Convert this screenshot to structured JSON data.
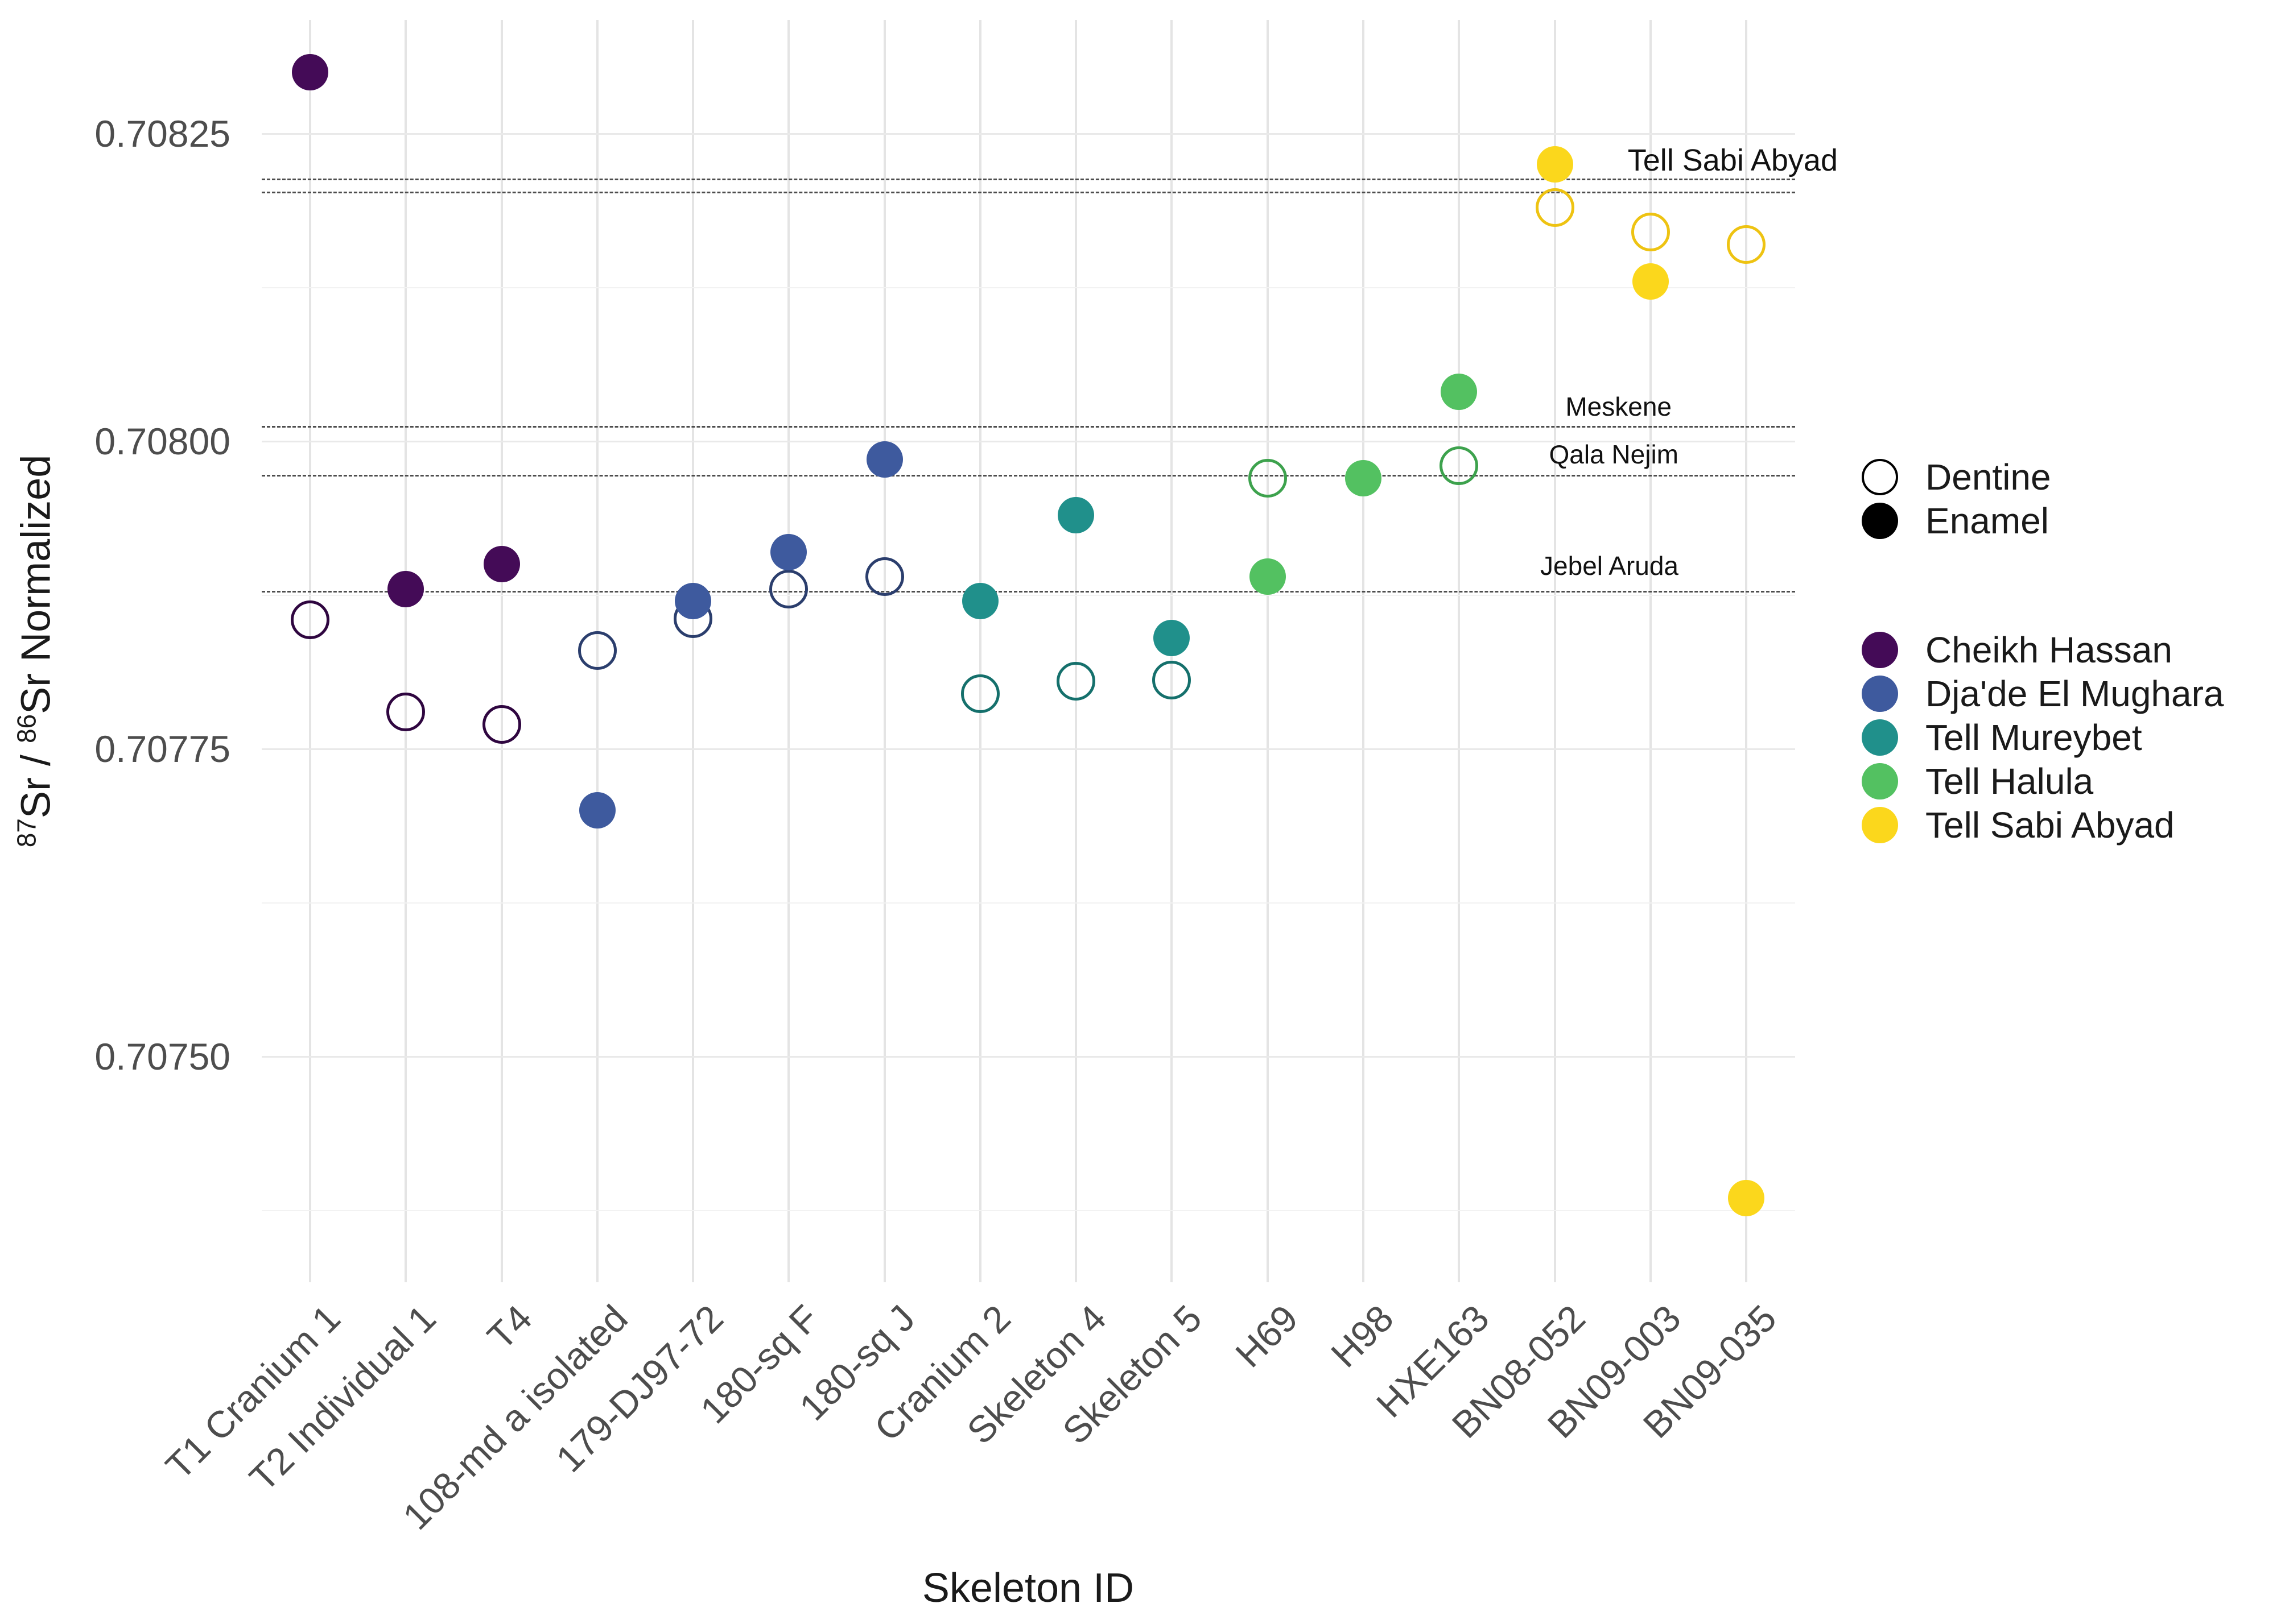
{
  "chart_data": {
    "type": "scatter",
    "title": "",
    "xlabel": "Skeleton ID",
    "ylabel": "87Sr / 86Sr Normalized",
    "ylabel_parts": {
      "sup1": "87",
      "mid1": "Sr / ",
      "sup2": "86",
      "mid2": "Sr Normalized"
    },
    "x_categories": [
      "T1 Cranium 1",
      "T2 Individual 1",
      "T4",
      "108-md a isolated",
      "179-DJ97-72",
      "180-sq F",
      "180-sq J",
      "Cranium 2",
      "Skeleton 4",
      "Skeleton 5",
      "H69",
      "H98",
      "HXE163",
      "BN08-052",
      "BN09-003",
      "BN09-035"
    ],
    "y_ticks": [
      {
        "label": "0.70825",
        "value": 0.70825
      },
      {
        "label": "0.70800",
        "value": 0.708
      },
      {
        "label": "0.70775",
        "value": 0.70775
      },
      {
        "label": "0.70750",
        "value": 0.7075
      }
    ],
    "y_minor_gridlines": [
      0.708125,
      0.707875,
      0.707625,
      0.707375
    ],
    "ylim": [
      0.707317,
      0.708342
    ],
    "grid": "on",
    "legend_position": "right",
    "series_by_site": [
      {
        "site": "Cheikh Hassan",
        "color": "#440b57",
        "stroke": "#2f0640",
        "points": [
          {
            "skeleton": "T1 Cranium 1",
            "x_index": 0,
            "enamel": 0.7083,
            "dentine": 0.707855
          },
          {
            "skeleton": "T2 Individual 1",
            "x_index": 1,
            "enamel": 0.70788,
            "dentine": 0.70778
          },
          {
            "skeleton": "T4",
            "x_index": 2,
            "enamel": 0.7079,
            "dentine": 0.70777
          }
        ]
      },
      {
        "site": "Dja'de El Mughara",
        "color": "#3e5a9e",
        "stroke": "#2b3e6d",
        "points": [
          {
            "skeleton": "108-md a isolated",
            "x_index": 3,
            "enamel": 0.7077,
            "dentine": 0.70783
          },
          {
            "skeleton": "179-DJ97-72",
            "x_index": 4,
            "enamel": 0.70787,
            "dentine": 0.707856
          },
          {
            "skeleton": "180-sq F",
            "x_index": 5,
            "enamel": 0.70791,
            "dentine": 0.70788
          },
          {
            "skeleton": "180-sq J",
            "x_index": 6,
            "enamel": 0.707985,
            "dentine": 0.70789
          }
        ]
      },
      {
        "site": "Tell Mureybet",
        "color": "#20908b",
        "stroke": "#15706c",
        "points": [
          {
            "skeleton": "Cranium 2",
            "x_index": 7,
            "enamel": 0.70787,
            "dentine": 0.707795
          },
          {
            "skeleton": "Skeleton 4",
            "x_index": 8,
            "enamel": 0.70794,
            "dentine": 0.707805
          },
          {
            "skeleton": "Skeleton 5",
            "x_index": 9,
            "enamel": 0.70784,
            "dentine": 0.707806
          }
        ]
      },
      {
        "site": "Tell Halula",
        "color": "#53c161",
        "stroke": "#3da24d",
        "points": [
          {
            "skeleton": "H69",
            "x_index": 10,
            "enamel": 0.70789,
            "dentine": 0.70797
          },
          {
            "skeleton": "H98",
            "x_index": 11,
            "enamel": 0.70797,
            "dentine": null
          },
          {
            "skeleton": "HXE163",
            "x_index": 12,
            "enamel": 0.70804,
            "dentine": 0.70798
          }
        ]
      },
      {
        "site": "Tell Sabi Abyad",
        "color": "#fbd71c",
        "stroke": "#eec312",
        "points": [
          {
            "skeleton": "BN08-052",
            "x_index": 13,
            "enamel": 0.708225,
            "dentine": 0.70819
          },
          {
            "skeleton": "BN09-003",
            "x_index": 14,
            "enamel": 0.70813,
            "dentine": 0.70817
          },
          {
            "skeleton": "BN09-035",
            "x_index": 15,
            "enamel": 0.707385,
            "dentine": 0.70816
          }
        ]
      }
    ],
    "reference_lines": [
      {
        "label": "Tell Sabi Abyad",
        "values": [
          0.708213,
          0.708202
        ],
        "label_x": 3230,
        "label_y": 252,
        "size": "large"
      },
      {
        "label": "Meskene",
        "values": [
          0.708012
        ],
        "label_x": 2938,
        "label_y": 688,
        "size": "small"
      },
      {
        "label": "Qala Nejim",
        "values": [
          0.707972
        ],
        "label_x": 2950,
        "label_y": 772,
        "size": "small"
      },
      {
        "label": "Jebel Aruda",
        "values": [
          0.707878
        ],
        "label_x": 2950,
        "label_y": 968,
        "size": "small"
      }
    ],
    "legend": {
      "shape_items": [
        {
          "label": "Dentine",
          "type": "open"
        },
        {
          "label": "Enamel",
          "type": "filled"
        }
      ],
      "site_items": [
        {
          "label": "Cheikh Hassan",
          "color": "#440b57"
        },
        {
          "label": "Dja'de El Mughara",
          "color": "#3e5a9e"
        },
        {
          "label": "Tell Mureybet",
          "color": "#20908b"
        },
        {
          "label": "Tell Halula",
          "color": "#53c161"
        },
        {
          "label": "Tell Sabi Abyad",
          "color": "#fbd71c"
        }
      ]
    }
  }
}
